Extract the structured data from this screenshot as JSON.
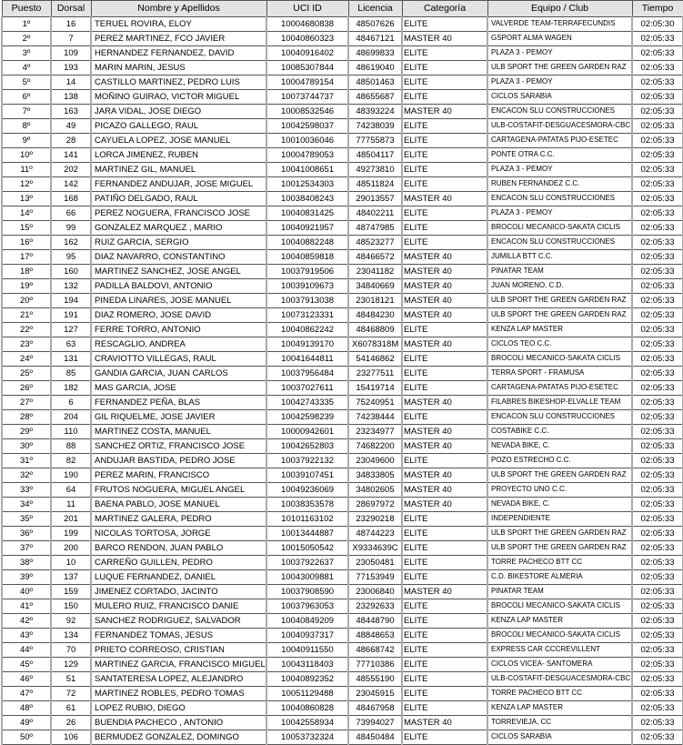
{
  "headers": [
    "Puesto",
    "Dorsal",
    "Nombre y Apellidos",
    "UCI ID",
    "Licencia",
    "Categoría",
    "Equipo / Club",
    "Tiempo"
  ],
  "rows": [
    [
      "1º",
      "16",
      "TERUEL ROVIRA, ELOY",
      "10004680838",
      "48507626",
      "ELITE",
      "VALVERDE TEAM-TERRAFECUNDIS",
      "02:05:30"
    ],
    [
      "2º",
      "7",
      "PEREZ MARTINEZ, FCO JAVIER",
      "10040860323",
      "48467121",
      "MASTER 40",
      "GSPORT ALMA WAGEN",
      "02:05:33"
    ],
    [
      "3º",
      "109",
      "HERNANDEZ FERNANDEZ, DAVID",
      "10040916402",
      "48699833",
      "ELITE",
      "PLAZA 3 - PEMOY",
      "02:05:33"
    ],
    [
      "4º",
      "193",
      "MARIN MARIN, JESUS",
      "10085307844",
      "48619040",
      "ELITE",
      "ULB SPORT THE GREEN GARDEN RAZ",
      "02:05:33"
    ],
    [
      "5º",
      "14",
      "CASTILLO MARTINEZ, PEDRO LUIS",
      "10004789154",
      "48501463",
      "ELITE",
      "PLAZA 3 - PEMOY",
      "02:05:33"
    ],
    [
      "6º",
      "138",
      "MOÑINO GUIRAO, VICTOR MIGUEL",
      "10073744737",
      "48655687",
      "ELITE",
      "CICLOS SARABIA",
      "02:05:33"
    ],
    [
      "7º",
      "163",
      "JARA VIDAL, JOSE DIEGO",
      "10008532546",
      "48393224",
      "MASTER 40",
      "ENCACON SLU CONSTRUCCIONES",
      "02:05:33"
    ],
    [
      "8º",
      "49",
      "PICAZO GALLEGO, RAUL",
      "10042598037",
      "74238039",
      "ELITE",
      "ULB-COSTAFIT-DESGUACESMORA-CBC",
      "02:05:33"
    ],
    [
      "9º",
      "28",
      "CAYUELA LOPEZ, JOSE MANUEL",
      "10010036046",
      "77755873",
      "ELITE",
      "CARTAGENA-PATATAS PIJO-ESETEC",
      "02:05:33"
    ],
    [
      "10º",
      "141",
      "LORCA JIMENEZ, RUBEN",
      "10004789053",
      "48504117",
      "ELITE",
      "PONTE OTRA C.C.",
      "02:05:33"
    ],
    [
      "11º",
      "202",
      "MARTINEZ GIL, MANUEL",
      "10041008651",
      "49273810",
      "ELITE",
      "PLAZA 3 - PEMOY",
      "02:05:33"
    ],
    [
      "12º",
      "142",
      "FERNANDEZ ANDUJAR, JOSE MIGUEL",
      "10012534303",
      "48511824",
      "ELITE",
      "RUBEN FERNANDEZ C.C.",
      "02:05:33"
    ],
    [
      "13º",
      "168",
      "PATIÑO DELGADO, RAUL",
      "10038408243",
      "29013557",
      "MASTER 40",
      "ENCACON SLU CONSTRUCCIONES",
      "02:05:33"
    ],
    [
      "14º",
      "66",
      "PEREZ NOGUERA, FRANCISCO JOSE",
      "10040831425",
      "48402211",
      "ELITE",
      "PLAZA 3 - PEMOY",
      "02:05:33"
    ],
    [
      "15º",
      "99",
      "GONZALEZ MARQUEZ , MARIO",
      "10040921957",
      "48747985",
      "ELITE",
      "BROCOLI MECANICO-SAKATA CICLIS",
      "02:05:33"
    ],
    [
      "16º",
      "162",
      "RUIZ GARCIA, SERGIO",
      "10040882248",
      "48523277",
      "ELITE",
      "ENCACON SLU CONSTRUCCIONES",
      "02:05:33"
    ],
    [
      "17º",
      "95",
      "DIAZ NAVARRO, CONSTANTINO",
      "10040859818",
      "48466572",
      "MASTER 40",
      "JUMILLA BTT C.C.",
      "02:05:33"
    ],
    [
      "18º",
      "160",
      "MARTINEZ SANCHEZ, JOSE ANGEL",
      "10037919506",
      "23041182",
      "MASTER 40",
      "PINATAR TEAM",
      "02:05:33"
    ],
    [
      "19º",
      "132",
      "PADILLA BALDOVI, ANTONIO",
      "10039109673",
      "34840669",
      "MASTER 40",
      "JUAN MORENO, C.D.",
      "02:05:33"
    ],
    [
      "20º",
      "194",
      "PINEDA LINARES, JOSE MANUEL",
      "10037913038",
      "23018121",
      "MASTER 40",
      "ULB SPORT THE GREEN GARDEN RAZ",
      "02:05:33"
    ],
    [
      "21º",
      "191",
      "DIAZ ROMERO, JOSE DAVID",
      "10073123331",
      "48484230",
      "MASTER 40",
      "ULB SPORT THE GREEN GARDEN RAZ",
      "02:05:33"
    ],
    [
      "22º",
      "127",
      "FERRE TORRO, ANTONIO",
      "10040862242",
      "48468809",
      "ELITE",
      "KENZA LAP MASTER",
      "02:05:33"
    ],
    [
      "23º",
      "63",
      "RESCAGLIO, ANDREA",
      "10049139170",
      "X6078318M",
      "MASTER 40",
      "CICLOS TEO C.C.",
      "02:05:33"
    ],
    [
      "24º",
      "131",
      "CRAVIOTTO VILLEGAS, RAUL",
      "10041644811",
      "54146862",
      "ELITE",
      "BROCOLI MECANICO-SAKATA CICLIS",
      "02:05:33"
    ],
    [
      "25º",
      "85",
      "GANDIA GARCIA, JUAN CARLOS",
      "10037956484",
      "23277511",
      "ELITE",
      "TERRA SPORT - FRAMUSA",
      "02:05:33"
    ],
    [
      "26º",
      "182",
      "MAS GARCIA, JOSE",
      "10037027611",
      "15419714",
      "ELITE",
      "CARTAGENA-PATATAS PIJO-ESETEC",
      "02:05:33"
    ],
    [
      "27º",
      "6",
      "FERNANDEZ PEÑA, BLAS",
      "10042743335",
      "75240951",
      "MASTER 40",
      "FILABRES BIKESHOP-ELVALLE TEAM",
      "02:05:33"
    ],
    [
      "28º",
      "204",
      "GIL RIQUELME, JOSE JAVIER",
      "10042598239",
      "74238444",
      "ELITE",
      "ENCACON SLU CONSTRUCCIONES",
      "02:05:33"
    ],
    [
      "29º",
      "110",
      "MARTINEZ COSTA, MANUEL",
      "10000942601",
      "23234977",
      "MASTER 40",
      "COSTABIKE C.C.",
      "02:05:33"
    ],
    [
      "30º",
      "88",
      "SANCHEZ ORTIZ, FRANCISCO JOSE",
      "10042652803",
      "74682200",
      "MASTER 40",
      "NEVADA BIKE, C.",
      "02:05:33"
    ],
    [
      "31º",
      "82",
      "ANDUJAR BASTIDA, PEDRO JOSE",
      "10037922132",
      "23049600",
      "ELITE",
      "POZO ESTRECHO C.C.",
      "02:05:33"
    ],
    [
      "32º",
      "190",
      "PEREZ MARIN, FRANCISCO",
      "10039107451",
      "34833805",
      "MASTER 40",
      "ULB SPORT THE GREEN GARDEN RAZ",
      "02:05:33"
    ],
    [
      "33º",
      "64",
      "FRUTOS NOGUERA, MIGUEL ANGEL",
      "10049236069",
      "34802605",
      "MASTER 40",
      "PROYECTO UNO C.C.",
      "02:05:33"
    ],
    [
      "34º",
      "11",
      "BAENA PABLO, JOSE MANUEL",
      "10038353578",
      "28697972",
      "MASTER 40",
      "NEVADA BIKE, C.",
      "02:05:33"
    ],
    [
      "35º",
      "201",
      "MARTINEZ GALERA, PEDRO",
      "10101163102",
      "23290218",
      "ELITE",
      "INDEPENDIENTE",
      "02:05:33"
    ],
    [
      "36º",
      "199",
      "NICOLAS TORTOSA, JORGE",
      "10013444887",
      "48744223",
      "ELITE",
      "ULB SPORT THE GREEN GARDEN RAZ",
      "02:05:33"
    ],
    [
      "37º",
      "200",
      "BARCO RENDON, JUAN PABLO",
      "10015050542",
      "X9334639C",
      "ELITE",
      "ULB SPORT THE GREEN GARDEN RAZ",
      "02:05:33"
    ],
    [
      "38º",
      "10",
      "CARREÑO GUILLEN, PEDRO",
      "10037922637",
      "23050481",
      "ELITE",
      "TORRE PACHECO BTT CC",
      "02:05:33"
    ],
    [
      "39º",
      "137",
      "LUQUE FERNANDEZ, DANIEL",
      "10043009881",
      "77153949",
      "ELITE",
      "C.D. BIKESTORE ALMERIA",
      "02:05:33"
    ],
    [
      "40º",
      "159",
      "JIMENEZ CORTADO, JACINTO",
      "10037908590",
      "23006840",
      "MASTER 40",
      "PINATAR TEAM",
      "02:05:33"
    ],
    [
      "41º",
      "150",
      "MULERO RUIZ, FRANCISCO DANIE",
      "10037963053",
      "23292633",
      "ELITE",
      "BROCOLI MECANICO-SAKATA CICLIS",
      "02:05:33"
    ],
    [
      "42º",
      "92",
      "SANCHEZ RODRIGUEZ, SALVADOR",
      "10040849209",
      "48448790",
      "ELITE",
      "KENZA LAP MASTER",
      "02:05:33"
    ],
    [
      "43º",
      "134",
      "FERNANDEZ TOMAS, JESUS",
      "10040937317",
      "48848653",
      "ELITE",
      "BROCOLI MECANICO-SAKATA CICLIS",
      "02:05:33"
    ],
    [
      "44º",
      "70",
      "PRIETO CORREOSO, CRISTIAN",
      "10040911550",
      "48668742",
      "ELITE",
      "EXPRESS CAR CCCREVILLENT",
      "02:05:33"
    ],
    [
      "45º",
      "129",
      "MARTINEZ GARCIA, FRANCISCO MIGUEL",
      "10043118403",
      "77710386",
      "ELITE",
      "CICLOS VICEA- SANTOMERA",
      "02:05:33"
    ],
    [
      "46º",
      "51",
      "SANTATERESA LOPEZ, ALEJANDRO",
      "10040892352",
      "48555190",
      "ELITE",
      "ULB-COSTAFIT-DESGUACESMORA-CBC",
      "02:05:33"
    ],
    [
      "47º",
      "72",
      "MARTINEZ ROBLES, PEDRO TOMAS",
      "10051129488",
      "23045915",
      "ELITE",
      "TORRE PACHECO BTT CC",
      "02:05:33"
    ],
    [
      "48º",
      "61",
      "LOPEZ RUBIO, DIEGO",
      "10040860828",
      "48467958",
      "ELITE",
      "KENZA LAP MASTER",
      "02:05:33"
    ],
    [
      "49º",
      "26",
      "BUENDIA PACHECO , ANTONIO",
      "10042558934",
      "73994027",
      "MASTER 40",
      "TORREVIEJA, CC",
      "02:05:33"
    ],
    [
      "50º",
      "106",
      "BERMUDEZ GONZALEZ, DOMINGO",
      "10053732324",
      "48450484",
      "ELITE",
      "CICLOS SARABIA",
      "02:05:33"
    ]
  ]
}
